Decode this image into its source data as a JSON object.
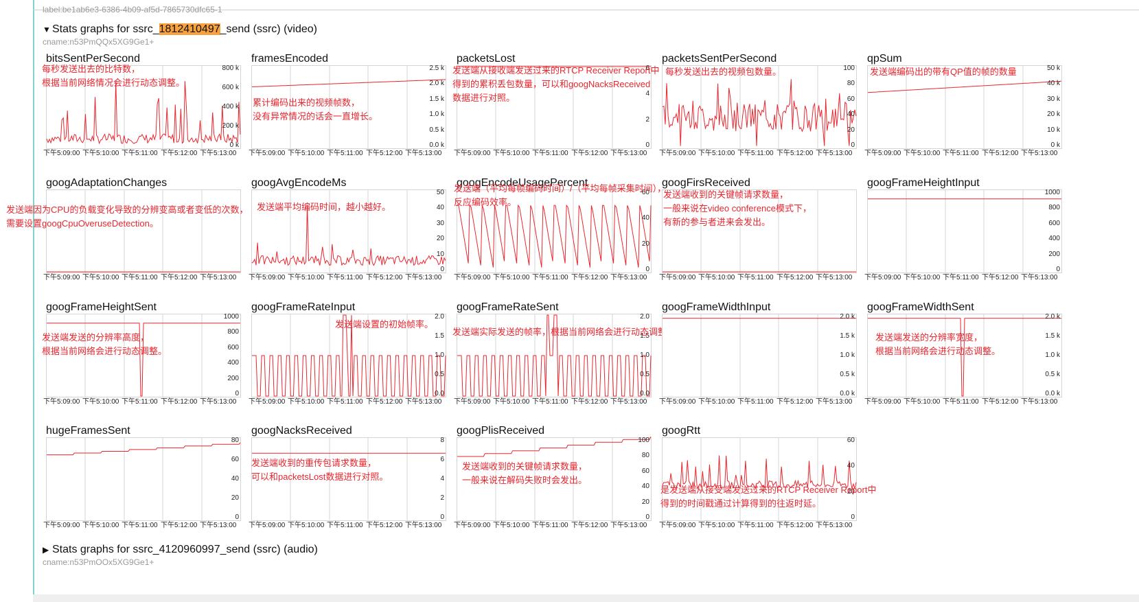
{
  "header": {
    "clipped_label": "label:be1ab6e3-6386-4b09-af5d-7865730dfc65-1",
    "video_section": {
      "toggle": "▼",
      "prefix": "Stats graphs for ssrc_",
      "ssrc": "1812410497",
      "suffix": "_send (ssrc) (video)",
      "cname": "cname:n53PmQQx5XG9Ge1+"
    },
    "audio_section": {
      "toggle": "▶",
      "title": "Stats graphs for ssrc_4120960997_send (ssrc) (audio)",
      "cname": "cname:n53PmQQx5XG9Ge1+"
    }
  },
  "x_ticks": [
    "下午5:09:00",
    "下午5:10:00",
    "下午5:11:00",
    "下午5:12:00",
    "下午5:13:00"
  ],
  "colors": {
    "line": "#e8262e",
    "grid": "#d4d4d4",
    "note": "#e8262e",
    "highlight": "#f7a13f"
  },
  "graphs": [
    {
      "title": "bitsSentPerSecond",
      "y_ticks": [
        "800 k",
        "600 k",
        "400 k",
        "200 k",
        "0 k"
      ],
      "shape": "spiky_low",
      "note": [
        "每秒发送出去的比特数，",
        "根据当前网络情况会进行动态调整。"
      ]
    },
    {
      "title": "framesEncoded",
      "y_ticks": [
        "2.5 k",
        "2.0 k",
        "1.5 k",
        "1.0 k",
        "0.5 k",
        "0.0 k"
      ],
      "shape": "rising",
      "level": [
        0.75,
        0.84
      ],
      "note": [
        "累计编码出来的视频帧数，",
        "没有异常情况的话会一直增长。"
      ]
    },
    {
      "title": "packetsLost",
      "y_ticks": [
        "6",
        "4",
        "2",
        "0"
      ],
      "shape": "flat",
      "level": [
        1.0,
        1.0
      ],
      "note": [
        "发送端从接收端发送过来的RTCP Receiver Report中",
        "得到的累积丢包数量，可以和googNacksReceived",
        "数据进行对照。"
      ]
    },
    {
      "title": "packetsSentPerSecond",
      "y_ticks": [
        "100",
        "80",
        "60",
        "40",
        "20",
        "0"
      ],
      "shape": "noisy_mid",
      "note": [
        "每秒发送出去的视频包数量。"
      ]
    },
    {
      "title": "qpSum",
      "y_ticks": [
        "50 k",
        "40 k",
        "30 k",
        "20 k",
        "10 k",
        "0 k"
      ],
      "shape": "rising",
      "level": [
        0.68,
        0.82
      ],
      "note": [
        "发送端编码出的带有QP值的帧的数量"
      ]
    },
    {
      "title": "googAdaptationChanges",
      "y_ticks": [],
      "shape": "flat",
      "level": [
        0.0,
        0.0
      ],
      "note": [
        "发送端因为CPU的负载变化导致的分辨变高或者变低的次数，",
        "需要设置googCpuOveruseDetection。"
      ]
    },
    {
      "title": "googAvgEncodeMs",
      "y_ticks": [
        "50",
        "40",
        "30",
        "20",
        "10",
        "0"
      ],
      "shape": "noisy_low",
      "note": [
        "发送端平均编码时间，越小越好。"
      ]
    },
    {
      "title": "googEncodeUsagePercent",
      "y_ticks": [
        "60",
        "40",
        "20",
        "0"
      ],
      "shape": "sawtooth",
      "note": [
        "发送端（平均每帧编码时间）/（平均每帧采集时间），",
        "反应编码效率。"
      ]
    },
    {
      "title": "googFirsReceived",
      "y_ticks": [],
      "shape": "flat",
      "level": [
        0.0,
        0.0
      ],
      "note": [
        "发送端收到的关键帧请求数量，",
        "一般来说在video conference模式下，",
        "有新的参与者进来会发出。"
      ]
    },
    {
      "title": "googFrameHeightInput",
      "y_ticks": [
        "1000",
        "800",
        "600",
        "400",
        "200",
        "0"
      ],
      "shape": "flat",
      "level": [
        0.9,
        0.9
      ],
      "note": []
    },
    {
      "title": "googFrameHeightSent",
      "y_ticks": [
        "1000",
        "800",
        "600",
        "400",
        "200",
        "0"
      ],
      "shape": "flat_dip",
      "level": [
        0.9,
        0.9
      ],
      "note": [
        "发送端发送的分辨率高度，",
        "根据当前网络会进行动态调整。"
      ]
    },
    {
      "title": "googFrameRateInput",
      "y_ticks": [
        "2.0",
        "1.5",
        "1.0",
        "0.5",
        "0.0"
      ],
      "shape": "square",
      "note": [
        "发送端设置的初始帧率。"
      ]
    },
    {
      "title": "googFrameRateSent",
      "y_ticks": [
        "2.0",
        "1.5",
        "1.0",
        "0.5",
        "0.0"
      ],
      "shape": "square",
      "note": [
        "发送端实际发送的帧率，根据当前网络会进行动态调整。"
      ]
    },
    {
      "title": "googFrameWidthInput",
      "y_ticks": [
        "2.0 k",
        "1.5 k",
        "1.0 k",
        "0.5 k",
        "0.0 k"
      ],
      "shape": "flat",
      "level": [
        0.96,
        0.96
      ],
      "note": []
    },
    {
      "title": "googFrameWidthSent",
      "y_ticks": [
        "2.0 k",
        "1.5 k",
        "1.0 k",
        "0.5 k",
        "0.0 k"
      ],
      "shape": "flat_dip",
      "level": [
        0.96,
        0.96
      ],
      "note": [
        "发送端发送的分辨率宽度，",
        "根据当前网络会进行动态调整。"
      ]
    },
    {
      "title": "hugeFramesSent",
      "y_ticks": [
        "80",
        "60",
        "40",
        "20",
        "0"
      ],
      "shape": "steps_up",
      "level": [
        0.8,
        0.93
      ],
      "note": []
    },
    {
      "title": "googNacksReceived",
      "y_ticks": [
        "8",
        "6",
        "4",
        "2",
        "0"
      ],
      "shape": "flat",
      "level": [
        0.82,
        0.82
      ],
      "note": [
        "发送端收到的重传包请求数量，",
        "可以和packetsLost数据进行对照。"
      ]
    },
    {
      "title": "googPlisReceived",
      "y_ticks": [
        "100",
        "80",
        "60",
        "40",
        "20",
        "0"
      ],
      "shape": "steps_up",
      "level": [
        0.78,
        0.99
      ],
      "note": [
        "发送端收到的关键帧请求数量，",
        "一般来说在解码失败时会发出。"
      ]
    },
    {
      "title": "googRtt",
      "y_ticks": [
        "60",
        "40",
        "20",
        "0"
      ],
      "shape": "spiky_rtt",
      "note": [
        "是发送端从接受端发送过来的RTCP Receiver Report中",
        "得到的时间戳通过计算得到的往返时延。"
      ]
    }
  ]
}
